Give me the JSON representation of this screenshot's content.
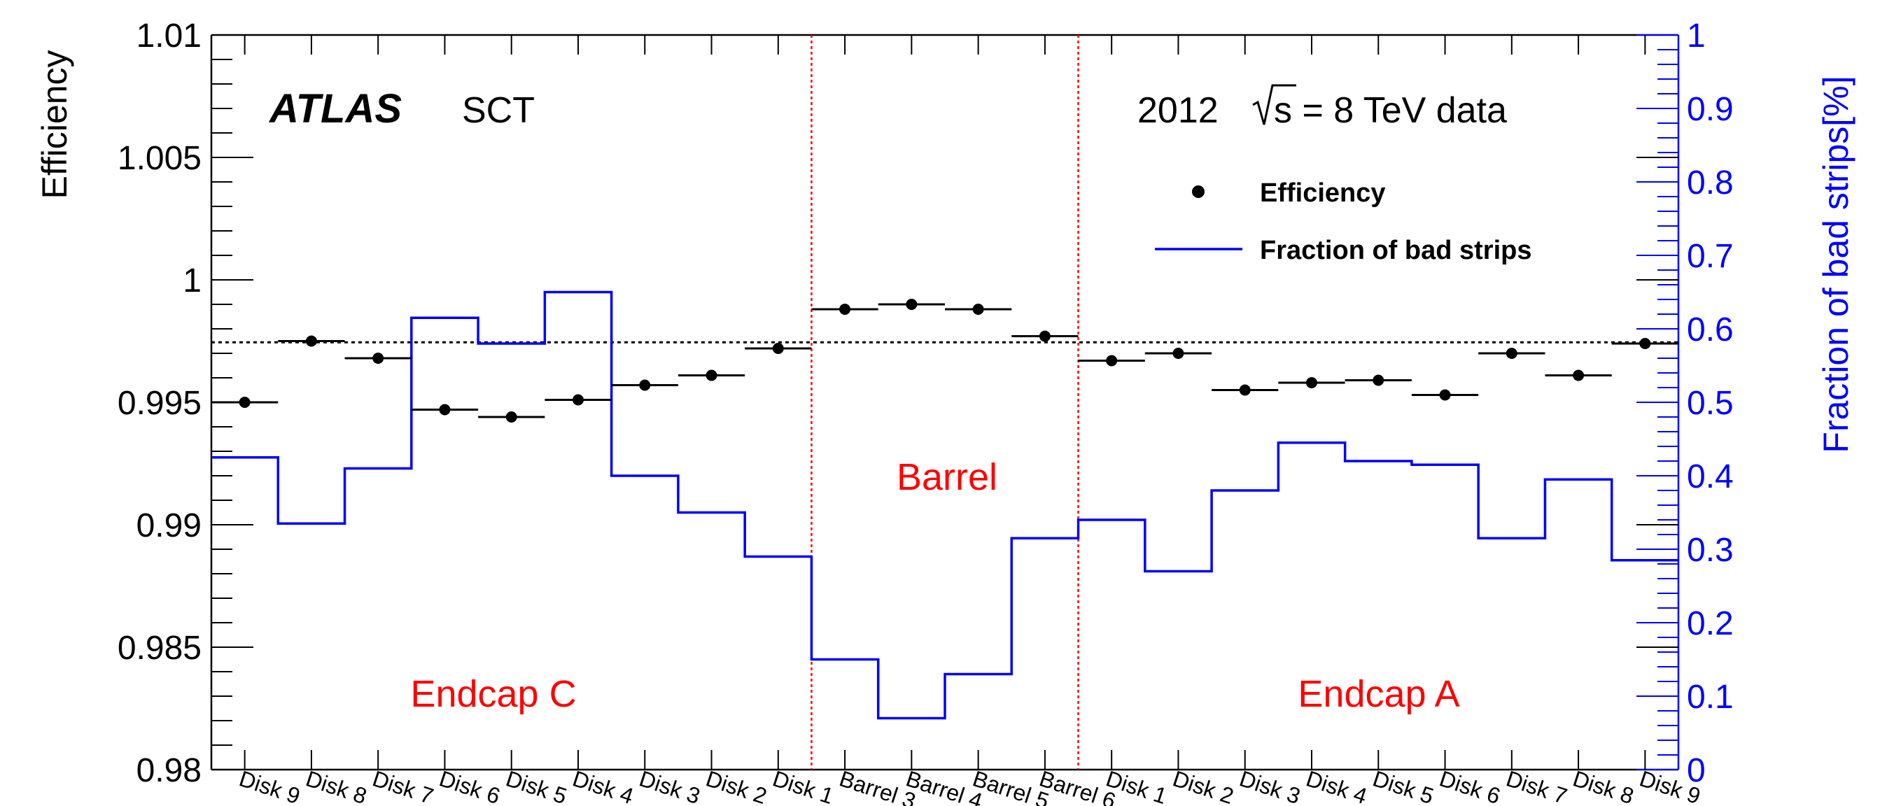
{
  "chart_data": {
    "type": "line",
    "experiment": "ATLAS",
    "detector": "SCT",
    "dataset_label_prefix": "2012",
    "dataset_label_suffix": "s = 8 TeV data",
    "ylabel": "Efficiency",
    "y2label": "Fraction of bad strips[%]",
    "ylim": [
      0.98,
      1.01
    ],
    "y2lim": [
      0,
      1
    ],
    "yticks": [
      "0.98",
      "0.985",
      "0.99",
      "0.995",
      "1",
      "1.005",
      "1.01"
    ],
    "y2ticks": [
      "0",
      "0.1",
      "0.2",
      "0.3",
      "0.4",
      "0.5",
      "0.6",
      "0.7",
      "0.8",
      "0.9",
      "1"
    ],
    "categories": [
      "Disk 9",
      "Disk 8",
      "Disk 7",
      "Disk 6",
      "Disk 5",
      "Disk 4",
      "Disk 3",
      "Disk 2",
      "Disk 1",
      "Barrel 3",
      "Barrel 4",
      "Barrel 5",
      "Barrel 6",
      "Disk 1",
      "Disk 2",
      "Disk 3",
      "Disk 4",
      "Disk 5",
      "Disk 6",
      "Disk 7",
      "Disk 8",
      "Disk 9"
    ],
    "series": [
      {
        "name": "Efficiency",
        "values": [
          0.995,
          0.9975,
          0.9968,
          0.9947,
          0.9944,
          0.9951,
          0.9957,
          0.9961,
          0.9972,
          0.9988,
          0.999,
          0.9988,
          0.9977,
          0.9967,
          0.997,
          0.9955,
          0.9958,
          0.9959,
          0.9953,
          0.997,
          0.9961,
          0.9974
        ]
      },
      {
        "name": "Fraction of bad strips",
        "values": [
          0.425,
          0.335,
          0.41,
          0.615,
          0.58,
          0.65,
          0.4,
          0.35,
          0.29,
          0.15,
          0.07,
          0.13,
          0.315,
          0.34,
          0.27,
          0.38,
          0.445,
          0.42,
          0.415,
          0.315,
          0.395,
          0.285
        ]
      }
    ],
    "reference_line": 0.99745,
    "region_dividers_after": [
      9,
      13
    ],
    "regions": [
      {
        "label": "Endcap C"
      },
      {
        "label": "Barrel"
      },
      {
        "label": "Endcap A"
      }
    ],
    "grid": false,
    "legend_position": "top-right",
    "colors": {
      "efficiency": "#000000",
      "bad_strips": "#0000ff",
      "dividers": "#ff0000",
      "region_labels": "#ff0000"
    }
  }
}
